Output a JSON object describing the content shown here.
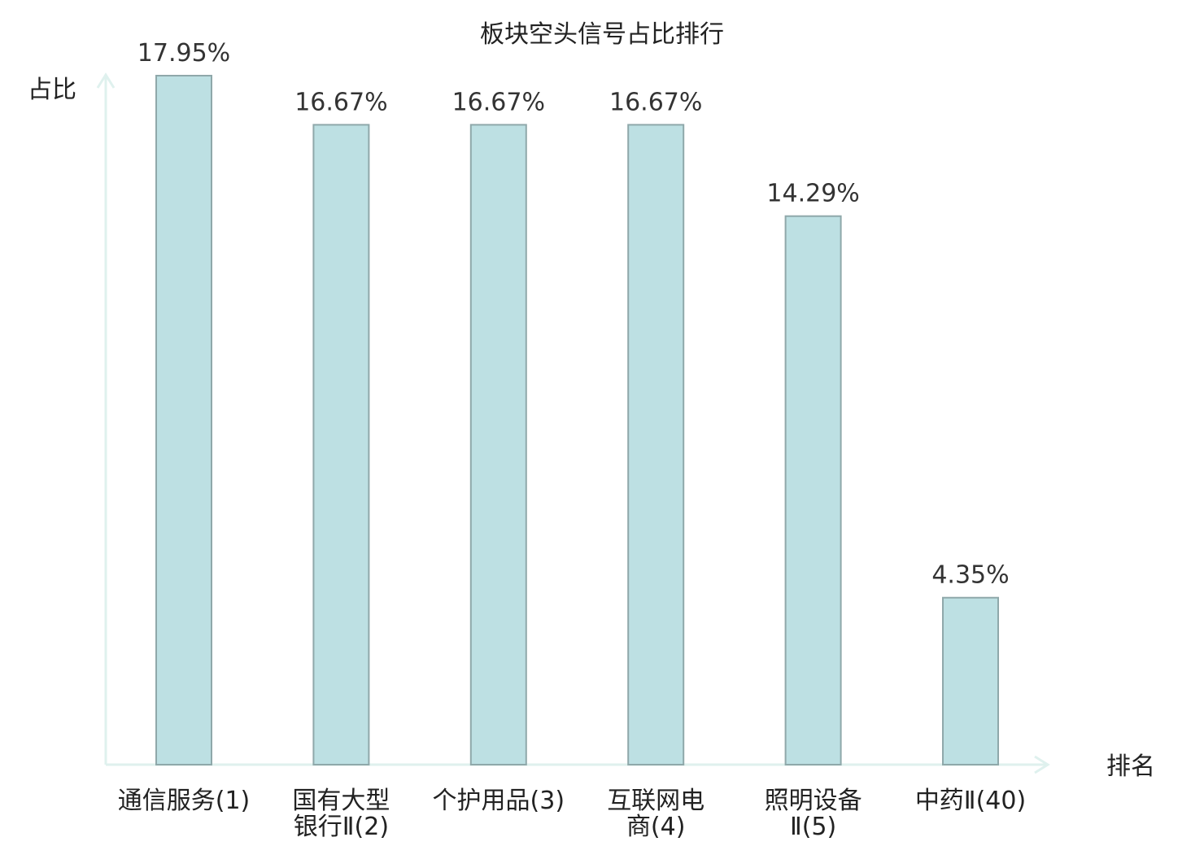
{
  "chart_data": {
    "type": "bar",
    "title": "板块空头信号占比排行",
    "ylabel": "占比",
    "xlabel": "排名",
    "ylim": [
      0,
      20
    ],
    "grid": false,
    "categories": [
      [
        "通信服务(1)"
      ],
      [
        "国有大型",
        "银行Ⅱ(2)"
      ],
      [
        "个护用品(3)"
      ],
      [
        "互联网电",
        "商(4)"
      ],
      [
        "照明设备",
        "Ⅱ(5)"
      ],
      [
        "中药Ⅱ(40)"
      ]
    ],
    "values": [
      17.95,
      16.67,
      16.67,
      16.67,
      14.29,
      4.35
    ],
    "value_labels": [
      "17.95%",
      "16.67%",
      "16.67%",
      "16.67%",
      "14.29%",
      "4.35%"
    ],
    "highlight_index": 5,
    "colors": {
      "bar_fill": "#bde0e3",
      "bar_stroke": "#8fa8aa",
      "axis": "#dff1ee",
      "highlight_text": "#e53935",
      "text": "#222222"
    }
  }
}
